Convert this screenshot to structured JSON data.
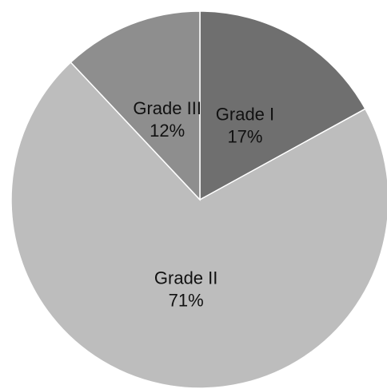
{
  "chart_data": {
    "type": "pie",
    "title": "",
    "start_angle_deg": 0,
    "direction": "clockwise",
    "slices": [
      {
        "label": "Grade I",
        "percent_label": "17%",
        "value": 17,
        "color": "#6f6f6f"
      },
      {
        "label": "Grade II",
        "percent_label": "71%",
        "value": 71,
        "color": "#bdbdbd"
      },
      {
        "label": "Grade III",
        "percent_label": "12%",
        "value": 12,
        "color": "#8e8e8e"
      }
    ],
    "slice_border_color": "#ffffff",
    "legend": "none"
  }
}
